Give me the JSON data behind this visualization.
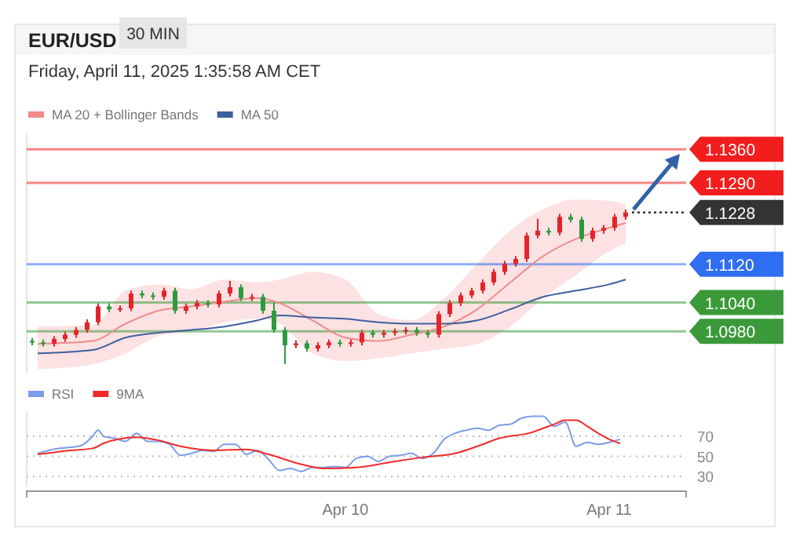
{
  "chart_data": [
    {
      "type": "candlestick",
      "title": "EUR/USD",
      "subtitle": "Friday, April 11, 2025 1:35:58 AM CET",
      "annotations": [
        "30 MIN"
      ],
      "x": [
        "2025-04-08T19:30",
        "2025-04-08T20:30",
        "2025-04-08T21:30",
        "2025-04-08T22:30",
        "2025-04-08T23:30",
        "2025-04-09T00:30",
        "2025-04-09T01:30",
        "2025-04-09T02:30",
        "2025-04-09T03:30",
        "2025-04-09T04:30",
        "2025-04-09T05:30",
        "2025-04-09T06:30",
        "2025-04-09T07:30",
        "2025-04-09T08:30",
        "2025-04-09T09:30",
        "2025-04-09T10:30",
        "2025-04-09T11:30",
        "2025-04-09T12:30",
        "2025-04-09T13:30",
        "2025-04-09T14:30",
        "2025-04-09T15:30",
        "2025-04-09T16:30",
        "2025-04-09T17:30",
        "2025-04-09T18:30",
        "2025-04-09T19:30",
        "2025-04-09T20:30",
        "2025-04-09T21:30",
        "2025-04-09T22:30",
        "2025-04-09T23:30",
        "2025-04-10T00:30",
        "2025-04-10T01:30",
        "2025-04-10T02:30",
        "2025-04-10T03:30",
        "2025-04-10T04:30",
        "2025-04-10T05:30",
        "2025-04-10T06:30",
        "2025-04-10T07:30",
        "2025-04-10T08:30",
        "2025-04-10T09:30",
        "2025-04-10T10:30",
        "2025-04-10T11:30",
        "2025-04-10T12:30",
        "2025-04-10T13:30",
        "2025-04-10T14:30",
        "2025-04-10T15:30",
        "2025-04-10T16:30",
        "2025-04-10T17:30",
        "2025-04-10T18:30",
        "2025-04-10T19:30",
        "2025-04-10T20:30",
        "2025-04-10T21:30",
        "2025-04-10T22:30",
        "2025-04-10T23:30",
        "2025-04-11T00:30",
        "2025-04-11T01:30"
      ],
      "ohlc": [
        [
          1.096,
          1.0966,
          1.0951,
          1.0957
        ],
        [
          1.0957,
          1.0963,
          1.0948,
          1.0954
        ],
        [
          1.0954,
          1.097,
          1.0948,
          1.0964
        ],
        [
          1.0964,
          1.0979,
          1.0958,
          1.0973
        ],
        [
          1.0973,
          1.0989,
          1.0967,
          1.0983
        ],
        [
          1.0983,
          1.1005,
          1.0977,
          1.0999
        ],
        [
          1.0999,
          1.1038,
          1.0993,
          1.1032
        ],
        [
          1.1032,
          1.1038,
          1.102,
          1.1026
        ],
        [
          1.1026,
          1.1034,
          1.102,
          1.1028
        ],
        [
          1.1028,
          1.1065,
          1.1022,
          1.1059
        ],
        [
          1.1059,
          1.1065,
          1.1049,
          1.1055
        ],
        [
          1.1055,
          1.1061,
          1.1046,
          1.1052
        ],
        [
          1.1052,
          1.1071,
          1.1046,
          1.1065
        ],
        [
          1.1065,
          1.1071,
          1.1017,
          1.1023
        ],
        [
          1.1023,
          1.1038,
          1.1017,
          1.1032
        ],
        [
          1.1032,
          1.1045,
          1.1026,
          1.1039
        ],
        [
          1.1039,
          1.1045,
          1.103,
          1.1036
        ],
        [
          1.1036,
          1.1065,
          1.103,
          1.1059
        ],
        [
          1.1059,
          1.1085,
          1.1053,
          1.1072
        ],
        [
          1.1072,
          1.1078,
          1.1043,
          1.1049
        ],
        [
          1.1049,
          1.1058,
          1.1043,
          1.1052
        ],
        [
          1.1052,
          1.1058,
          1.1017,
          1.1023
        ],
        [
          1.1023,
          1.104,
          1.0977,
          1.0983
        ],
        [
          1.0983,
          1.0989,
          1.0912,
          1.0951
        ],
        [
          1.0951,
          1.0961,
          1.0945,
          1.0955
        ],
        [
          1.0955,
          1.0961,
          1.0938,
          1.0944
        ],
        [
          1.0944,
          1.0957,
          1.0938,
          1.0951
        ],
        [
          1.0951,
          1.0963,
          1.0945,
          1.0957
        ],
        [
          1.0957,
          1.0963,
          1.0948,
          1.0954
        ],
        [
          1.0954,
          1.0963,
          1.0948,
          1.0957
        ],
        [
          1.0957,
          1.0983,
          1.0951,
          1.0977
        ],
        [
          1.0977,
          1.0983,
          1.0967,
          1.0973
        ],
        [
          1.0973,
          1.0983,
          1.0967,
          1.0977
        ],
        [
          1.0977,
          1.0986,
          1.0971,
          1.098
        ],
        [
          1.098,
          1.0989,
          1.0974,
          1.0983
        ],
        [
          1.0983,
          1.0989,
          1.0971,
          1.0977
        ],
        [
          1.0977,
          1.0983,
          1.0967,
          1.0973
        ],
        [
          1.0973,
          1.1022,
          1.0967,
          1.1016
        ],
        [
          1.1016,
          1.1045,
          1.101,
          1.1039
        ],
        [
          1.1039,
          1.1061,
          1.1033,
          1.1055
        ],
        [
          1.1055,
          1.1071,
          1.1049,
          1.1065
        ],
        [
          1.1065,
          1.1088,
          1.1059,
          1.1082
        ],
        [
          1.1082,
          1.111,
          1.1076,
          1.1104
        ],
        [
          1.1104,
          1.1127,
          1.1098,
          1.1121
        ],
        [
          1.1121,
          1.1137,
          1.1115,
          1.1131
        ],
        [
          1.1131,
          1.1186,
          1.1125,
          1.118
        ],
        [
          1.118,
          1.1215,
          1.1174,
          1.119
        ],
        [
          1.119,
          1.1196,
          1.118,
          1.1186
        ],
        [
          1.1186,
          1.1225,
          1.118,
          1.1219
        ],
        [
          1.1219,
          1.1225,
          1.1207,
          1.1213
        ],
        [
          1.1213,
          1.1219,
          1.1167,
          1.1173
        ],
        [
          1.1173,
          1.1196,
          1.1167,
          1.119
        ],
        [
          1.119,
          1.1202,
          1.1184,
          1.1196
        ],
        [
          1.1196,
          1.1225,
          1.119,
          1.1219
        ],
        [
          1.1219,
          1.1234,
          1.1213,
          1.1228
        ]
      ],
      "colors": [
        "#2e9a3e",
        "#2e9a3e",
        "#e3252b",
        "#e3252b",
        "#e3252b",
        "#e3252b",
        "#e3252b",
        "#2e9a3e",
        "#e3252b",
        "#e3252b",
        "#2e9a3e",
        "#2e9a3e",
        "#e3252b",
        "#2e9a3e",
        "#e3252b",
        "#e3252b",
        "#2e9a3e",
        "#e3252b",
        "#e3252b",
        "#2e9a3e",
        "#e3252b",
        "#2e9a3e",
        "#2e9a3e",
        "#2e9a3e",
        "#e3252b",
        "#2e9a3e",
        "#e3252b",
        "#e3252b",
        "#2e9a3e",
        "#e3252b",
        "#e3252b",
        "#2e9a3e",
        "#e3252b",
        "#e3252b",
        "#e3252b",
        "#2e9a3e",
        "#2e9a3e",
        "#e3252b",
        "#e3252b",
        "#e3252b",
        "#e3252b",
        "#e3252b",
        "#e3252b",
        "#e3252b",
        "#e3252b",
        "#e3252b",
        "#e3252b",
        "#2e9a3e",
        "#e3252b",
        "#2e9a3e",
        "#2e9a3e",
        "#e3252b",
        "#e3252b",
        "#e3252b",
        "#e3252b"
      ],
      "series": [
        {
          "name": "MA 20 + Bollinger Bands",
          "type": "line",
          "color": "#f28b8b",
          "x": [
            "2025-04-08T20:00",
            "2025-04-09T01:00",
            "2025-04-09T04:00",
            "2025-04-09T07:00",
            "2025-04-09T10:00",
            "2025-04-09T13:00",
            "2025-04-09T16:00",
            "2025-04-09T18:00",
            "2025-04-09T21:00",
            "2025-04-10T00:00",
            "2025-04-10T03:00",
            "2025-04-10T06:00",
            "2025-04-10T09:00",
            "2025-04-10T12:00",
            "2025-04-10T15:00",
            "2025-04-10T18:00",
            "2025-04-10T21:00",
            "2025-04-11T00:00",
            "2025-04-11T01:30"
          ],
          "values": [
            1.0954,
            1.096,
            1.0996,
            1.1023,
            1.1032,
            1.1042,
            1.1049,
            1.1039,
            1.1003,
            1.0967,
            1.096,
            1.0973,
            1.099,
            1.1026,
            1.1082,
            1.1137,
            1.1173,
            1.1196,
            1.1206
          ],
          "upper": [
            1.099,
            1.0993,
            1.1065,
            1.1078,
            1.1068,
            1.1088,
            1.1082,
            1.1088,
            1.1104,
            1.1088,
            1.1016,
            1.1003,
            1.1049,
            1.1121,
            1.119,
            1.1235,
            1.1255,
            1.1252,
            1.1245
          ],
          "lower": [
            1.0901,
            1.0911,
            1.0934,
            1.097,
            1.098,
            1.0999,
            1.1006,
            1.0996,
            1.0934,
            1.0918,
            1.0924,
            1.0934,
            1.0944,
            1.0954,
            1.099,
            1.1049,
            1.1098,
            1.1147,
            1.1163
          ]
        },
        {
          "name": "MA 50",
          "type": "line",
          "color": "#3e5f9e",
          "x": [
            "2025-04-08T20:00",
            "2025-04-09T01:00",
            "2025-04-09T04:00",
            "2025-04-09T07:00",
            "2025-04-09T10:00",
            "2025-04-09T13:00",
            "2025-04-09T16:00",
            "2025-04-09T18:00",
            "2025-04-09T21:00",
            "2025-04-10T00:00",
            "2025-04-10T03:00",
            "2025-04-10T06:00",
            "2025-04-10T09:00",
            "2025-04-10T12:00",
            "2025-04-10T15:00",
            "2025-04-10T18:00",
            "2025-04-10T21:00",
            "2025-04-11T00:00",
            "2025-04-11T01:30"
          ],
          "values": [
            1.0934,
            1.0941,
            1.0967,
            1.0977,
            1.0983,
            1.099,
            1.1003,
            1.1013,
            1.1009,
            1.1006,
            1.0999,
            1.0996,
            1.0996,
            1.1003,
            1.1026,
            1.1052,
            1.1065,
            1.1078,
            1.1088
          ]
        }
      ],
      "ref_lines": [
        {
          "axis": "y",
          "value": 1.136,
          "label": "1.1360",
          "color": "#f21d1d"
        },
        {
          "axis": "y",
          "value": 1.129,
          "label": "1.1290",
          "color": "#f21d1d"
        },
        {
          "axis": "y",
          "value": 1.1228,
          "label": "1.1228",
          "color": "#333333",
          "line_style": "dotted"
        },
        {
          "axis": "y",
          "value": 1.112,
          "label": "1.1120",
          "color": "#2f6ef0"
        },
        {
          "axis": "y",
          "value": 1.104,
          "label": "1.1040",
          "color": "#3a9a3a"
        },
        {
          "axis": "y",
          "value": 1.098,
          "label": "1.0980",
          "color": "#3a9a3a"
        }
      ],
      "xlim": [
        "2025-04-08T19:00",
        "2025-04-11T07:00"
      ],
      "ylim": [
        1.0892,
        1.1393
      ],
      "legend": "top left"
    },
    {
      "type": "line",
      "series": [
        {
          "name": "RSI",
          "color": "#7d9ce8",
          "x": [
            "2025-04-08T20:00",
            "2025-04-08T21:00",
            "2025-04-08T22:00",
            "2025-04-08T23:00",
            "2025-04-09T00:00",
            "2025-04-09T01:00",
            "2025-04-09T01:30",
            "2025-04-09T02:00",
            "2025-04-09T03:00",
            "2025-04-09T04:00",
            "2025-04-09T05:00",
            "2025-04-09T06:00",
            "2025-04-09T07:00",
            "2025-04-09T08:00",
            "2025-04-09T09:00",
            "2025-04-09T10:00",
            "2025-04-09T11:00",
            "2025-04-09T12:00",
            "2025-04-09T13:00",
            "2025-04-09T14:00",
            "2025-04-09T15:00",
            "2025-04-09T16:00",
            "2025-04-09T17:00",
            "2025-04-09T18:00",
            "2025-04-09T19:00",
            "2025-04-09T20:00",
            "2025-04-09T21:00",
            "2025-04-09T22:00",
            "2025-04-09T23:00",
            "2025-04-10T00:00",
            "2025-04-10T01:00",
            "2025-04-10T02:00",
            "2025-04-10T03:00",
            "2025-04-10T04:00",
            "2025-04-10T05:00",
            "2025-04-10T06:00",
            "2025-04-10T07:00",
            "2025-04-10T08:00",
            "2025-04-10T09:00",
            "2025-04-10T10:00",
            "2025-04-10T11:00",
            "2025-04-10T12:00",
            "2025-04-10T13:00",
            "2025-04-10T14:00",
            "2025-04-10T15:00",
            "2025-04-10T16:00",
            "2025-04-10T17:00",
            "2025-04-10T18:00",
            "2025-04-10T19:00",
            "2025-04-10T20:00",
            "2025-04-10T21:00",
            "2025-04-10T22:00",
            "2025-04-10T23:00",
            "2025-04-11T00:00",
            "2025-04-11T01:00"
          ],
          "values": [
            53,
            56,
            58,
            59,
            61,
            70,
            76,
            70,
            68,
            65,
            73,
            65,
            65,
            62,
            51,
            53,
            56,
            55,
            62,
            62,
            52,
            56,
            47,
            36,
            38,
            35,
            39,
            39,
            40,
            39,
            48,
            50,
            45,
            50,
            51,
            53,
            48,
            53,
            67,
            73,
            76,
            78,
            76,
            81,
            82,
            88,
            90,
            90,
            80,
            84,
            60,
            64,
            62,
            64,
            67
          ]
        },
        {
          "name": "9MA",
          "color": "#f02a2a",
          "x": [
            "2025-04-08T20:00",
            "2025-04-08T23:00",
            "2025-04-09T01:00",
            "2025-04-09T02:00",
            "2025-04-09T05:00",
            "2025-04-09T07:00",
            "2025-04-09T09:00",
            "2025-04-09T12:00",
            "2025-04-09T15:00",
            "2025-04-09T17:00",
            "2025-04-09T20:00",
            "2025-04-09T22:00",
            "2025-04-10T01:00",
            "2025-04-10T04:00",
            "2025-04-10T07:00",
            "2025-04-10T10:00",
            "2025-04-10T12:00",
            "2025-04-10T14:00",
            "2025-04-10T17:00",
            "2025-04-10T18:00",
            "2025-04-10T19:00",
            "2025-04-10T20:00",
            "2025-04-10T21:00",
            "2025-04-10T22:00",
            "2025-04-10T23:00",
            "2025-04-11T00:00",
            "2025-04-11T01:00"
          ],
          "values": [
            52,
            56,
            58,
            63,
            69,
            66,
            60,
            56,
            57,
            52,
            42,
            38,
            39,
            44,
            49,
            53,
            60,
            68,
            74,
            78,
            82,
            86,
            86,
            80,
            73,
            67,
            63
          ]
        }
      ],
      "xlim": [
        "2025-04-08T19:00",
        "2025-04-11T07:00"
      ],
      "xticks": [
        {
          "value": "2025-04-10T00:00",
          "label": "Apr 10"
        },
        {
          "value": "2025-04-11T00:00",
          "label": "Apr 11"
        }
      ],
      "ylim": [
        20,
        95
      ],
      "yticks": [
        30,
        50,
        70
      ],
      "grid": "y",
      "line_style": "solid",
      "legend": "top left"
    }
  ]
}
